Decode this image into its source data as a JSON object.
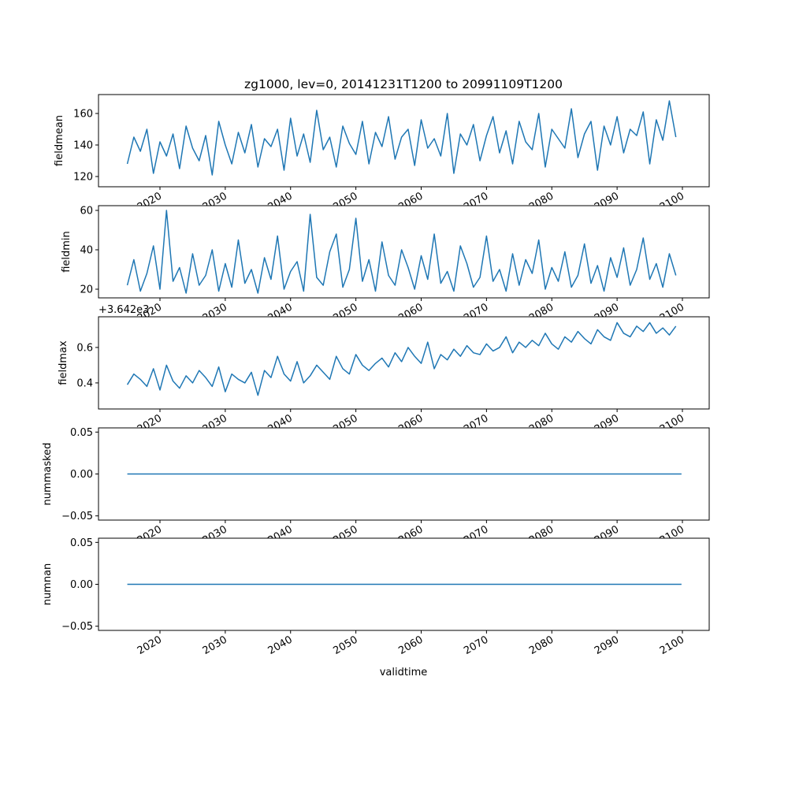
{
  "chart_data": {
    "type": "line",
    "title": "zg1000, lev=0, 20141231T1200 to 20991109T1200",
    "xlabel": "validtime",
    "x_start": 2015,
    "x_step": 1,
    "xlim": [
      2010.5,
      2104.2
    ],
    "xticks": [
      2020,
      2030,
      2040,
      2050,
      2060,
      2070,
      2080,
      2090,
      2100
    ],
    "xtick_labels": [
      "2020",
      "2030",
      "2040",
      "2050",
      "2060",
      "2070",
      "2080",
      "2090",
      "2100"
    ],
    "color": "#1f77b4",
    "panels": [
      {
        "ylabel": "fieldmean",
        "ylim": [
          113.5,
          172
        ],
        "yticks": [
          120,
          140,
          160
        ],
        "ytick_labels": [
          "120",
          "140",
          "160"
        ],
        "values": [
          128,
          145,
          136,
          150,
          122,
          142,
          133,
          147,
          125,
          152,
          138,
          130,
          146,
          121,
          155,
          140,
          128,
          148,
          135,
          153,
          126,
          144,
          139,
          150,
          124,
          157,
          133,
          147,
          129,
          162,
          137,
          145,
          126,
          152,
          141,
          134,
          155,
          128,
          148,
          139,
          158,
          131,
          145,
          150,
          127,
          156,
          138,
          144,
          133,
          160,
          122,
          147,
          140,
          153,
          130,
          146,
          158,
          135,
          149,
          128,
          155,
          142,
          137,
          160,
          126,
          150,
          144,
          138,
          163,
          132,
          147,
          155,
          124,
          152,
          140,
          158,
          135,
          150,
          146,
          161,
          128,
          156,
          143,
          168,
          145
        ]
      },
      {
        "ylabel": "fieldmin",
        "ylim": [
          15.6,
          62.4
        ],
        "yticks": [
          20,
          40,
          60
        ],
        "ytick_labels": [
          "20",
          "40",
          "60"
        ],
        "values": [
          22,
          35,
          19,
          28,
          42,
          20,
          60,
          24,
          31,
          18,
          38,
          22,
          27,
          40,
          19,
          33,
          21,
          45,
          23,
          30,
          18,
          36,
          25,
          47,
          20,
          29,
          34,
          19,
          58,
          26,
          22,
          39,
          48,
          21,
          30,
          56,
          24,
          35,
          19,
          44,
          27,
          22,
          40,
          31,
          20,
          37,
          25,
          48,
          23,
          29,
          19,
          42,
          33,
          21,
          26,
          47,
          24,
          30,
          19,
          38,
          22,
          35,
          28,
          45,
          20,
          31,
          24,
          39,
          21,
          27,
          43,
          23,
          32,
          19,
          36,
          26,
          41,
          22,
          30,
          46,
          25,
          33,
          21,
          38,
          27
        ]
      },
      {
        "ylabel": "fieldmax",
        "offset_text": "+3.642e3",
        "ylim": [
          0.253,
          0.773
        ],
        "yticks": [
          0.4,
          0.6
        ],
        "ytick_labels": [
          "0.4",
          "0.6"
        ],
        "values": [
          0.39,
          0.45,
          0.42,
          0.38,
          0.48,
          0.36,
          0.5,
          0.41,
          0.37,
          0.44,
          0.4,
          0.47,
          0.43,
          0.38,
          0.49,
          0.35,
          0.45,
          0.42,
          0.4,
          0.46,
          0.33,
          0.47,
          0.43,
          0.55,
          0.45,
          0.41,
          0.52,
          0.4,
          0.44,
          0.5,
          0.46,
          0.42,
          0.55,
          0.48,
          0.45,
          0.56,
          0.5,
          0.47,
          0.51,
          0.54,
          0.49,
          0.57,
          0.52,
          0.6,
          0.55,
          0.51,
          0.63,
          0.48,
          0.56,
          0.53,
          0.59,
          0.55,
          0.61,
          0.57,
          0.56,
          0.62,
          0.58,
          0.6,
          0.66,
          0.57,
          0.63,
          0.6,
          0.64,
          0.61,
          0.68,
          0.62,
          0.59,
          0.66,
          0.63,
          0.69,
          0.65,
          0.62,
          0.7,
          0.66,
          0.64,
          0.74,
          0.68,
          0.66,
          0.72,
          0.69,
          0.74,
          0.68,
          0.71,
          0.67,
          0.72
        ]
      },
      {
        "ylabel": "nummasked",
        "ylim": [
          -0.055,
          0.055
        ],
        "yticks": [
          -0.05,
          0.0,
          0.05
        ],
        "ytick_labels": [
          "−0.05",
          "0.00",
          "0.05"
        ],
        "values": [
          0,
          0
        ]
      },
      {
        "ylabel": "numnan",
        "ylim": [
          -0.055,
          0.055
        ],
        "yticks": [
          -0.05,
          0.0,
          0.05
        ],
        "ytick_labels": [
          "−0.05",
          "0.00",
          "0.05"
        ],
        "values": [
          0,
          0
        ]
      }
    ]
  }
}
